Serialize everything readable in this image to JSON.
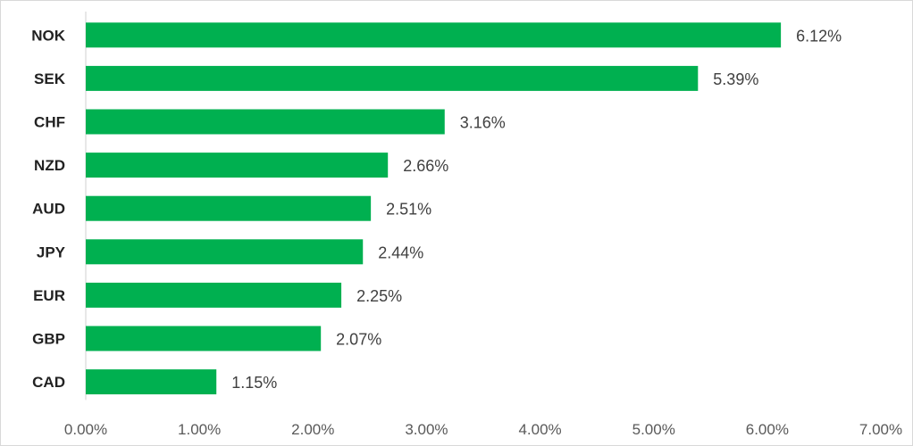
{
  "chart_data": {
    "type": "bar",
    "orientation": "horizontal",
    "categories": [
      "NOK",
      "SEK",
      "CHF",
      "NZD",
      "AUD",
      "JPY",
      "EUR",
      "GBP",
      "CAD"
    ],
    "values": [
      6.12,
      5.39,
      3.16,
      2.66,
      2.51,
      2.44,
      2.25,
      2.07,
      1.15
    ],
    "value_labels": [
      "6.12%",
      "5.39%",
      "3.16%",
      "2.66%",
      "2.51%",
      "2.44%",
      "2.25%",
      "2.07%",
      "1.15%"
    ],
    "xlim": [
      0,
      7
    ],
    "x_ticks": [
      0,
      1,
      2,
      3,
      4,
      5,
      6,
      7
    ],
    "x_tick_labels": [
      "0.00%",
      "1.00%",
      "2.00%",
      "3.00%",
      "4.00%",
      "5.00%",
      "6.00%",
      "7.00%"
    ],
    "title": "",
    "xlabel": "",
    "ylabel": "",
    "grid": false,
    "legend": "none",
    "bar_color": "#00b050"
  }
}
